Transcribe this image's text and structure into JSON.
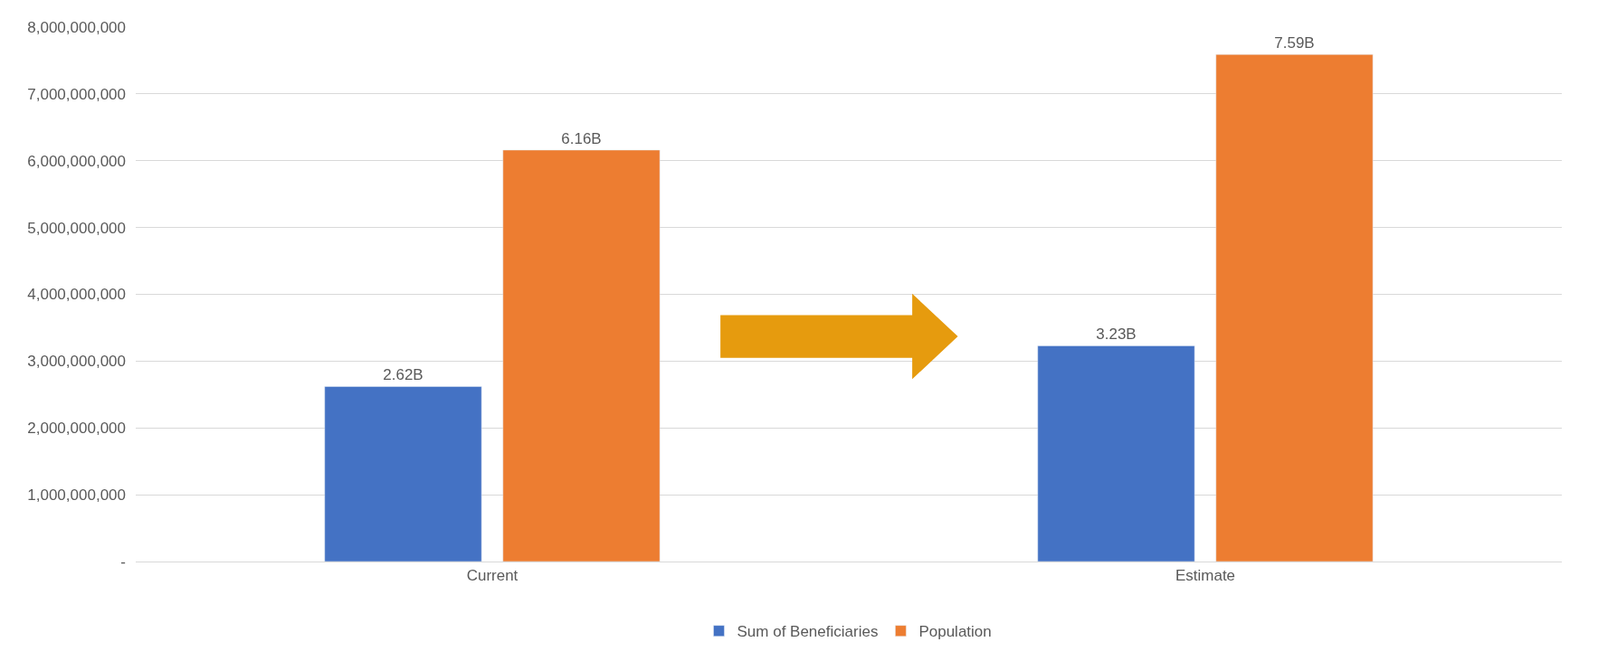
{
  "chart_data": {
    "type": "bar",
    "categories": [
      "Current",
      "Estimate"
    ],
    "series": [
      {
        "name": "Sum of Beneficiaries",
        "color": "#4472c4",
        "values": [
          2620000000,
          3230000000
        ],
        "value_labels": [
          "2.62B",
          "3.23B"
        ]
      },
      {
        "name": "Population",
        "color": "#ed7d31",
        "values": [
          6160000000,
          7590000000
        ],
        "value_labels": [
          "6.16B",
          "7.59B"
        ]
      }
    ],
    "ylim": [
      0,
      8000000000
    ],
    "yticks": [
      {
        "value": 0,
        "label": "-"
      },
      {
        "value": 1000000000,
        "label": "1,000,000,000"
      },
      {
        "value": 2000000000,
        "label": "2,000,000,000"
      },
      {
        "value": 3000000000,
        "label": "3,000,000,000"
      },
      {
        "value": 4000000000,
        "label": "4,000,000,000"
      },
      {
        "value": 5000000000,
        "label": "5,000,000,000"
      },
      {
        "value": 6000000000,
        "label": "6,000,000,000"
      },
      {
        "value": 7000000000,
        "label": "7,000,000,000"
      },
      {
        "value": 8000000000,
        "label": "8,000,000,000"
      }
    ],
    "grid": "y",
    "legend": "bottom"
  }
}
